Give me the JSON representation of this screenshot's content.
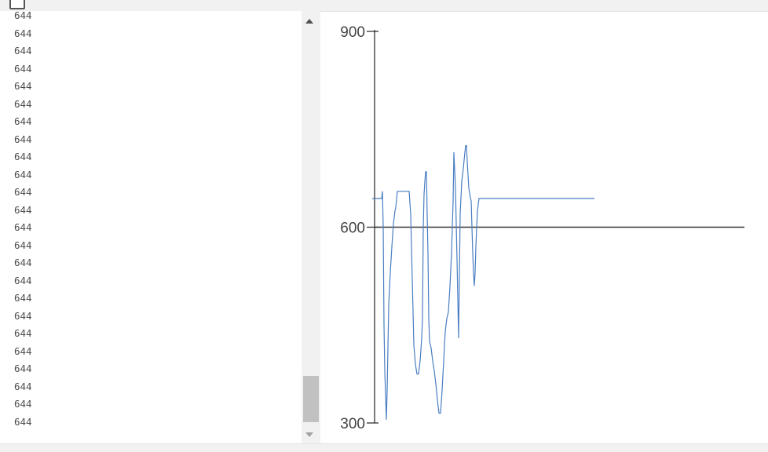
{
  "window": {
    "serial_monitor": {
      "lines": [
        "644",
        "644",
        "644",
        "644",
        "644",
        "644",
        "644",
        "644",
        "644",
        "644",
        "644",
        "644",
        "644",
        "644",
        "644",
        "644",
        "644",
        "644",
        "644",
        "644",
        "644",
        "644",
        "644",
        "644"
      ]
    }
  },
  "chart_data": {
    "type": "line",
    "title": "",
    "xlabel": "",
    "ylabel": "",
    "ylim": [
      300,
      900
    ],
    "y_ticks": [
      300,
      600,
      900
    ],
    "grid": false,
    "line_color": "#4a7ec2",
    "reference_line": {
      "y": 600,
      "color": "#333333"
    },
    "series": [
      {
        "x": [
          0,
          12,
          13,
          14,
          15,
          16,
          18,
          19,
          21,
          23,
          25,
          27,
          29,
          30,
          32,
          35,
          36,
          38,
          40,
          42,
          44,
          47,
          49,
          51,
          53,
          55,
          57,
          59,
          61,
          63,
          64,
          65,
          66,
          67,
          68,
          69,
          70,
          71,
          72,
          73,
          75,
          77,
          79,
          81,
          83,
          85,
          87,
          89,
          91,
          92,
          93,
          95,
          97,
          99,
          101,
          103,
          104,
          106,
          108,
          110,
          112,
          114,
          116,
          118,
          119,
          120,
          121,
          122,
          123,
          125,
          126,
          127,
          128,
          129,
          130,
          131,
          132,
          133,
          134,
          135,
          136,
          137,
          139,
          141,
          143,
          145,
          147,
          149,
          153,
          160,
          190,
          230,
          283
        ],
        "y": [
          644,
          644,
          655,
          600,
          450,
          380,
          305,
          350,
          480,
          530,
          570,
          605,
          625,
          630,
          655,
          655,
          655,
          655,
          655,
          655,
          655,
          655,
          620,
          520,
          420,
          390,
          375,
          375,
          395,
          430,
          460,
          600,
          650,
          670,
          685,
          685,
          620,
          560,
          460,
          425,
          415,
          395,
          380,
          360,
          335,
          315,
          315,
          350,
          395,
          420,
          440,
          460,
          470,
          510,
          560,
          640,
          715,
          660,
          550,
          430,
          620,
          670,
          690,
          715,
          725,
          725,
          700,
          680,
          660,
          645,
          640,
          600,
          560,
          530,
          510,
          530,
          570,
          600,
          625,
          635,
          644,
          644,
          644,
          644,
          644,
          644,
          644,
          644,
          644,
          644,
          644,
          644,
          644
        ]
      }
    ]
  }
}
